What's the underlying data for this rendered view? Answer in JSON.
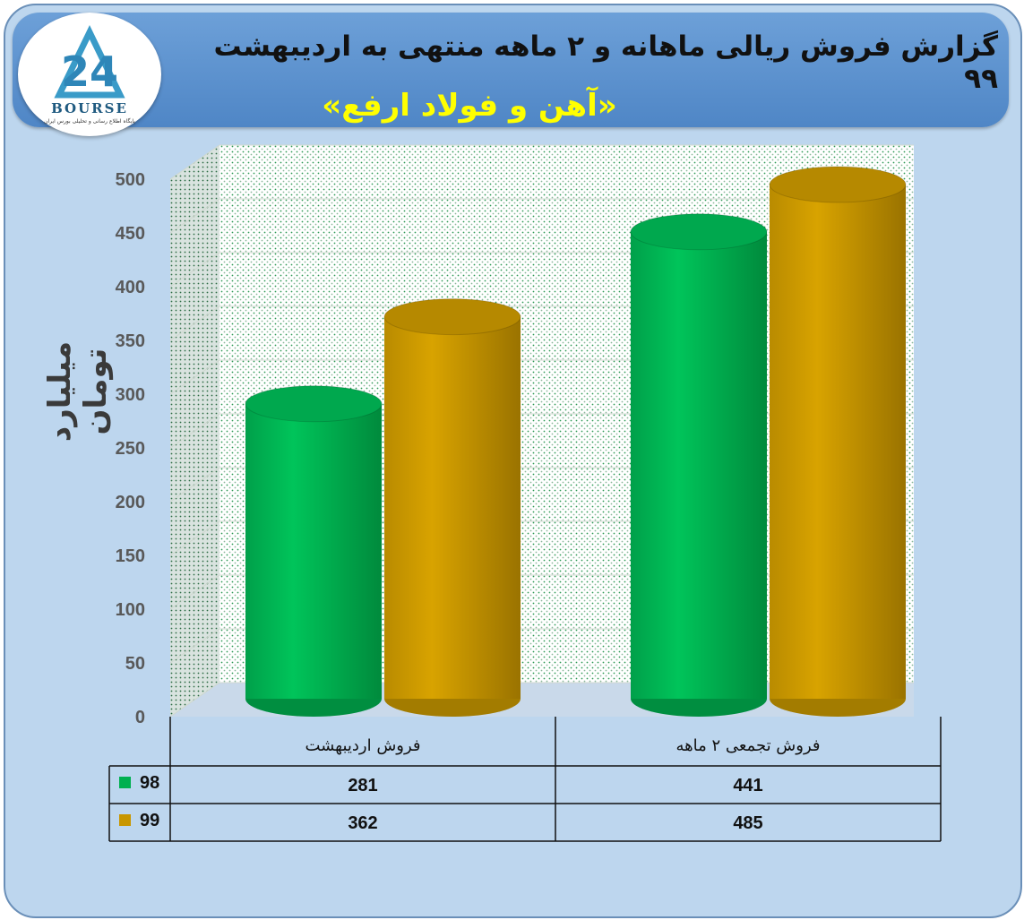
{
  "header": {
    "title": "گزارش فروش ریالی ماهانه و ۲ ماهه منتهی به اردیبهشت ۹۹",
    "subtitle": "«آهن و فولاد ارفع»"
  },
  "logo": {
    "wordmark": "BOURSE",
    "tagline": "پایگاه اطلاع رسانی و تحلیلی بورس ایران"
  },
  "colors": {
    "series_98": "#00b050",
    "series_99": "#c89600",
    "background": "#bdd6ee",
    "header": "#5b8fcf"
  },
  "chart_data": {
    "type": "bar",
    "style": "3d-cylinder",
    "categories": [
      "فروش اردیبهشت",
      "فروش تجمعی ۲ ماهه"
    ],
    "series": [
      {
        "name": "98",
        "values": [
          281,
          441
        ]
      },
      {
        "name": "99",
        "values": [
          362,
          485
        ]
      }
    ],
    "ylabel": "میلیارد تومان",
    "ylim": [
      0,
      500
    ],
    "yticks": [
      0,
      50,
      100,
      150,
      200,
      250,
      300,
      350,
      400,
      450,
      500
    ],
    "grid": true,
    "data_table": true
  }
}
